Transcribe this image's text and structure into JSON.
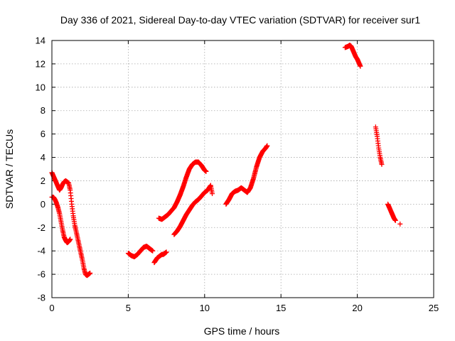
{
  "chart_data": {
    "type": "scatter",
    "title": "Day 336 of 2021, Sidereal Day-to-day VTEC variation (SDTVAR) for receiver sur1",
    "xlabel": "GPS time / hours",
    "ylabel": "SDTVAR / TECUs",
    "xlim": [
      0,
      25
    ],
    "ylim": [
      -8,
      14
    ],
    "x_ticks": [
      0,
      5,
      10,
      15,
      20,
      25
    ],
    "y_ticks": [
      -8,
      -6,
      -4,
      -2,
      0,
      2,
      4,
      6,
      8,
      10,
      12,
      14
    ],
    "grid": true,
    "marker": "plus",
    "series": [
      {
        "color": "#ff0000",
        "segments": [
          {
            "x": [
              0.0,
              0.1,
              0.2,
              0.3,
              0.4,
              0.5,
              0.6,
              0.7,
              0.8,
              0.9,
              1.0,
              1.1,
              1.2,
              1.3,
              1.4,
              1.5,
              1.6,
              1.7,
              1.8,
              1.9,
              2.0,
              2.1,
              2.2,
              2.3,
              2.4,
              2.5
            ],
            "y": [
              2.7,
              2.4,
              2.1,
              1.8,
              1.5,
              1.2,
              1.4,
              1.7,
              1.9,
              2.0,
              1.9,
              1.8,
              1.2,
              0.0,
              -1.0,
              -1.8,
              -2.4,
              -3.0,
              -3.6,
              -4.2,
              -4.8,
              -5.5,
              -6.0,
              -6.1,
              -6.0,
              -5.9
            ]
          },
          {
            "x": [
              0.0,
              0.1,
              0.2,
              0.3,
              0.4,
              0.5,
              0.6,
              0.7,
              0.8,
              0.9,
              1.0,
              1.1,
              1.2
            ],
            "y": [
              0.6,
              0.6,
              0.4,
              0.1,
              -0.3,
              -0.8,
              -1.5,
              -2.2,
              -2.8,
              -3.1,
              -3.3,
              -3.2,
              -3.0
            ]
          },
          {
            "x": [
              5.0,
              5.2,
              5.4,
              5.6,
              5.8,
              6.0,
              6.2,
              6.4,
              6.6
            ],
            "y": [
              -4.2,
              -4.4,
              -4.5,
              -4.3,
              -4.0,
              -3.7,
              -3.6,
              -3.8,
              -4.0
            ]
          },
          {
            "x": [
              6.7,
              6.8,
              6.9,
              7.0,
              7.1,
              7.2,
              7.3,
              7.4,
              7.5
            ],
            "y": [
              -5.0,
              -4.8,
              -4.6,
              -4.5,
              -4.4,
              -4.3,
              -4.3,
              -4.2,
              -4.1
            ]
          },
          {
            "x": [
              7.0,
              7.2,
              7.4,
              7.6,
              7.8,
              8.0,
              8.2,
              8.4,
              8.6,
              8.8,
              9.0,
              9.2,
              9.4,
              9.6,
              9.8,
              10.0,
              10.1
            ],
            "y": [
              -1.2,
              -1.3,
              -1.1,
              -0.9,
              -0.6,
              -0.3,
              0.2,
              0.8,
              1.5,
              2.3,
              3.0,
              3.4,
              3.6,
              3.6,
              3.3,
              2.9,
              2.8
            ]
          },
          {
            "x": [
              8.0,
              8.2,
              8.4,
              8.6,
              8.8,
              9.0,
              9.2,
              9.4,
              9.6,
              9.8,
              10.0,
              10.2,
              10.4,
              10.5
            ],
            "y": [
              -2.6,
              -2.3,
              -1.9,
              -1.4,
              -0.9,
              -0.5,
              -0.1,
              0.2,
              0.4,
              0.7,
              1.0,
              1.2,
              1.6,
              0.9
            ]
          },
          {
            "x": [
              11.4,
              11.6,
              11.8,
              12.0,
              12.2,
              12.4,
              12.6,
              12.8,
              13.0,
              13.2,
              13.4,
              13.6,
              13.8,
              14.0,
              14.1
            ],
            "y": [
              0.0,
              0.4,
              0.9,
              1.1,
              1.2,
              1.4,
              1.2,
              1.0,
              1.4,
              2.2,
              3.2,
              4.0,
              4.5,
              4.8,
              5.0
            ]
          },
          {
            "x": [
              19.2,
              19.4,
              19.5,
              19.6,
              19.9,
              20.0,
              20.1,
              20.2
            ],
            "y": [
              13.4,
              13.5,
              13.6,
              13.5,
              12.6,
              12.4,
              12.1,
              11.8
            ]
          },
          {
            "x": [
              21.2,
              21.3,
              21.4,
              21.5,
              21.6
            ],
            "y": [
              6.6,
              5.8,
              4.8,
              4.0,
              3.4
            ]
          },
          {
            "x": [
              22.0,
              22.1,
              22.2,
              22.3,
              22.4,
              22.5,
              22.8
            ],
            "y": [
              0.0,
              -0.3,
              -0.6,
              -0.9,
              -1.2,
              -1.4,
              -1.7
            ]
          }
        ]
      }
    ]
  }
}
